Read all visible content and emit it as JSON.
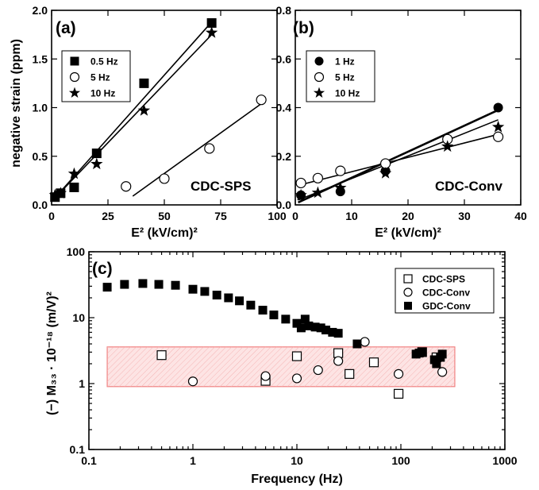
{
  "chart_data": [
    {
      "type": "scatter",
      "panel_label": "(a)",
      "annotation": "CDC-SPS",
      "xlabel": "E² (kV/cm)²",
      "ylabel": "negative strain (ppm)",
      "xlim": [
        0,
        100
      ],
      "ylim": [
        0,
        2.0
      ],
      "x_ticks": [
        "0",
        "25",
        "50",
        "75",
        "100"
      ],
      "y_ticks": [
        "0.0",
        "0.5",
        "1.0",
        "1.5",
        "2.0"
      ],
      "legend_position": "upper-left",
      "series": [
        {
          "name": "0.5 Hz",
          "marker": "filled-square",
          "x": [
            1.5,
            4.0,
            10.0,
            20.0,
            41.0,
            71.0
          ],
          "y": [
            0.08,
            0.12,
            0.18,
            0.53,
            1.25,
            1.87
          ]
        },
        {
          "name": "5 Hz",
          "marker": "open-circle",
          "x": [
            33.0,
            50.0,
            70.0,
            93.0
          ],
          "y": [
            0.19,
            0.27,
            0.58,
            1.08
          ]
        },
        {
          "name": "10 Hz",
          "marker": "star",
          "x": [
            1.5,
            4.0,
            10.0,
            20.0,
            41.0,
            71.0
          ],
          "y": [
            0.1,
            0.12,
            0.32,
            0.42,
            0.97,
            1.77
          ]
        }
      ],
      "fit_lines": [
        {
          "x": [
            1.0,
            71.0
          ],
          "y": [
            0.06,
            1.88
          ]
        },
        {
          "x": [
            1.0,
            71.0
          ],
          "y": [
            0.06,
            1.75
          ]
        },
        {
          "x": [
            36.0,
            93.0
          ],
          "y": [
            0.09,
            1.04
          ]
        }
      ]
    },
    {
      "type": "scatter",
      "panel_label": "(b)",
      "annotation": "CDC-Conv",
      "xlabel": "E² (kV/cm)²",
      "ylabel": "",
      "xlim": [
        0,
        40
      ],
      "ylim": [
        0,
        0.8
      ],
      "x_ticks": [
        "0",
        "10",
        "20",
        "30",
        "40"
      ],
      "y_ticks": [
        "0.0",
        "0.2",
        "0.4",
        "0.6",
        "0.8"
      ],
      "legend_position": "upper-left",
      "series": [
        {
          "name": "1 Hz",
          "marker": "filled-circle",
          "x": [
            1.0,
            8.0,
            16.0,
            27.0,
            36.0
          ],
          "y": [
            0.04,
            0.055,
            0.14,
            0.27,
            0.4
          ]
        },
        {
          "name": "5 Hz",
          "marker": "open-circle",
          "x": [
            1.0,
            4.0,
            8.0,
            16.0,
            27.0,
            36.0
          ],
          "y": [
            0.09,
            0.11,
            0.14,
            0.17,
            0.27,
            0.28
          ]
        },
        {
          "name": "10 Hz",
          "marker": "star",
          "x": [
            1.0,
            4.0,
            8.0,
            16.0,
            27.0,
            36.0
          ],
          "y": [
            0.04,
            0.05,
            0.07,
            0.13,
            0.24,
            0.32
          ]
        }
      ],
      "fit_lines": [
        {
          "x": [
            0.5,
            36.0
          ],
          "y": [
            0.01,
            0.39
          ],
          "weight": "thick"
        },
        {
          "x": [
            0.5,
            36.0
          ],
          "y": [
            0.02,
            0.35
          ]
        },
        {
          "x": [
            0.5,
            36.0
          ],
          "y": [
            0.08,
            0.29
          ]
        }
      ]
    },
    {
      "type": "scatter",
      "panel_label": "(c)",
      "xlabel": "Frequency (Hz)",
      "ylabel": "(−) M₃₃ · 10⁻¹⁸ (m/V)²",
      "xscale": "log",
      "yscale": "log",
      "xlim": [
        0.1,
        1000
      ],
      "ylim": [
        0.1,
        100
      ],
      "x_ticks": [
        "0.1",
        "1",
        "10",
        "100",
        "1000"
      ],
      "y_ticks": [
        "0.1",
        "1",
        "10",
        "100"
      ],
      "legend_position": "upper-right",
      "shaded_band": {
        "x": [
          0.15,
          330
        ],
        "y": [
          0.9,
          3.6
        ],
        "color": "#f08080"
      },
      "series": [
        {
          "name": "CDC-SPS",
          "marker": "open-square",
          "x": [
            0.5,
            5.0,
            10.0,
            25.0,
            32.0,
            55.0,
            95.0,
            160.0,
            220.0
          ],
          "y": [
            2.7,
            1.1,
            2.6,
            2.9,
            1.4,
            2.1,
            0.7,
            3.0,
            2.5
          ]
        },
        {
          "name": "CDC-Conv",
          "marker": "open-circle",
          "x": [
            1.0,
            5.0,
            10.0,
            16.0,
            25.0,
            45.0,
            95.0,
            250.0
          ],
          "y": [
            1.08,
            1.3,
            1.2,
            1.6,
            2.2,
            4.3,
            1.4,
            1.5
          ]
        },
        {
          "name": "GDC-Conv",
          "marker": "filled-square",
          "x": [
            0.15,
            0.22,
            0.33,
            0.47,
            0.68,
            1.0,
            1.3,
            1.7,
            2.2,
            2.8,
            3.6,
            4.7,
            6.0,
            7.8,
            10.0,
            11.0,
            12.0,
            13.0,
            15.0,
            17.0,
            19.0,
            22.0,
            25.0,
            38.0,
            140.0,
            150.0,
            160.0,
            210.0,
            220.0,
            240.0,
            250.0
          ],
          "y": [
            29,
            32,
            33,
            32,
            31,
            27,
            25,
            22,
            20,
            18,
            15.5,
            13,
            11,
            9.5,
            8.2,
            7.0,
            9.5,
            7.5,
            7.2,
            7.0,
            6.5,
            6.0,
            5.8,
            4.0,
            2.8,
            2.9,
            3.0,
            2.3,
            2.0,
            2.5,
            2.8
          ]
        }
      ]
    }
  ]
}
